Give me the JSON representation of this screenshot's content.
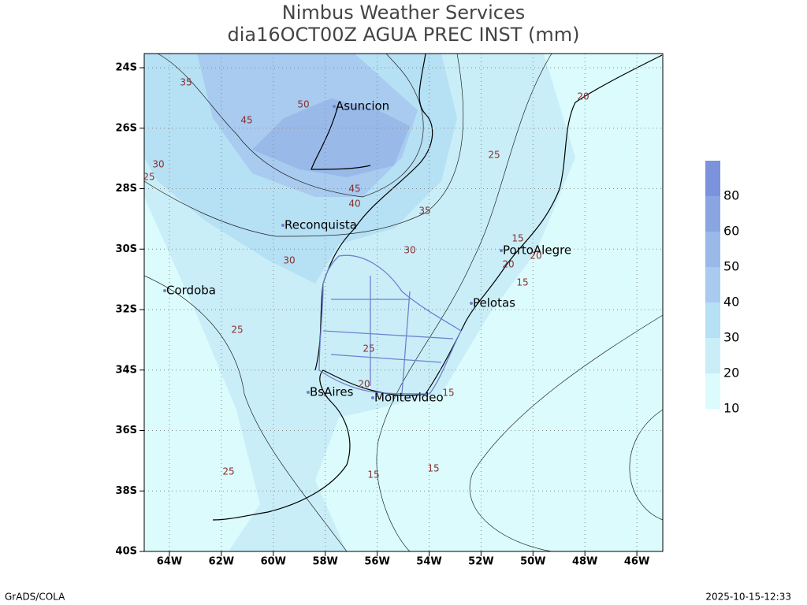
{
  "title": {
    "line1": "Nimbus Weather Services",
    "line2": "dia16OCT00Z AGUA PREC INST (mm)"
  },
  "map": {
    "lat_labels": [
      "24S",
      "26S",
      "28S",
      "30S",
      "32S",
      "34S",
      "36S",
      "38S",
      "40S"
    ],
    "lon_labels": [
      "64W",
      "62W",
      "60W",
      "58W",
      "56W",
      "54W",
      "52W",
      "50W",
      "48W",
      "46W"
    ],
    "cities": [
      "Asuncion",
      "Reconquista",
      "Cordoba",
      "PortoAlegre",
      "Pelotas",
      "BsAires",
      "Montevideo"
    ],
    "contour_labels": [
      35,
      50,
      45,
      30,
      25,
      45,
      40,
      35,
      25,
      20,
      30,
      30,
      15,
      20,
      20,
      15,
      25,
      25,
      20,
      15,
      25,
      15,
      15
    ]
  },
  "colorbar": {
    "labels": [
      10,
      20,
      30,
      40,
      50,
      60,
      80
    ]
  },
  "footer": {
    "left": "GrADS/COLA",
    "right": "2025-10-15-12:33"
  }
}
